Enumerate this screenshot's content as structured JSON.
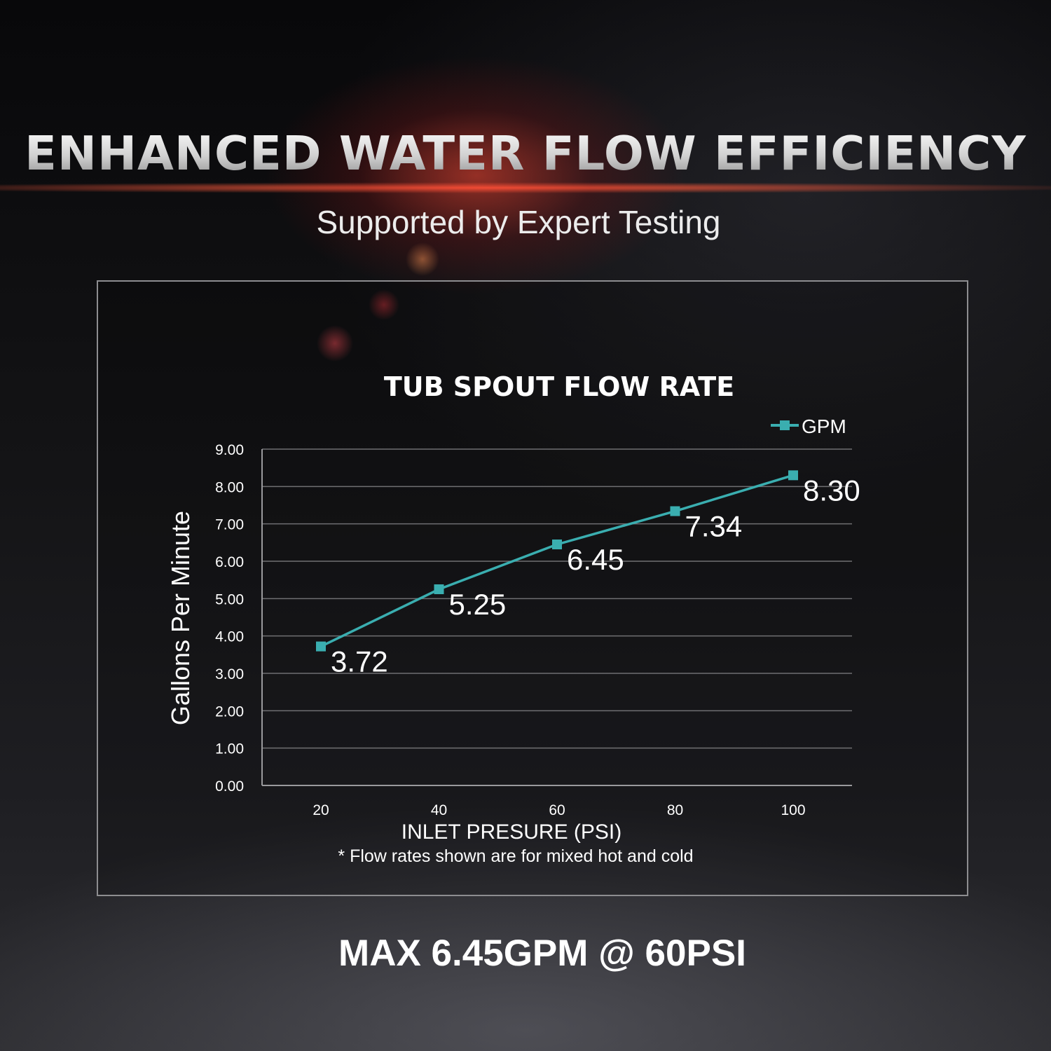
{
  "page": {
    "headline": "ENHANCED WATER FLOW EFFICIENCY",
    "subheadline": "Supported by Expert Testing",
    "footer": "MAX 6.45GPM @ 60PSI"
  },
  "colors": {
    "series": "#3aaeb0",
    "grid": "#6f6f72",
    "text": "#ffffff"
  },
  "chart_data": {
    "type": "line",
    "title": "TUB SPOUT FLOW RATE",
    "xlabel": "INLET PRESURE (PSI)",
    "ylabel": "Gallons Per Minute",
    "note": "* Flow rates shown are for mixed hot and cold",
    "categories": [
      "20",
      "40",
      "60",
      "80",
      "100"
    ],
    "series": [
      {
        "name": "GPM",
        "values": [
          3.72,
          5.25,
          6.45,
          7.34,
          8.3
        ],
        "marker": "square"
      }
    ],
    "data_labels": [
      "3.72",
      "5.25",
      "6.45",
      "7.34",
      "8.30"
    ],
    "y_ticks": [
      "0.00",
      "1.00",
      "2.00",
      "3.00",
      "4.00",
      "5.00",
      "6.00",
      "7.00",
      "8.00",
      "9.00"
    ],
    "ylim": [
      0,
      9
    ],
    "grid": true,
    "legend": "top-right"
  }
}
